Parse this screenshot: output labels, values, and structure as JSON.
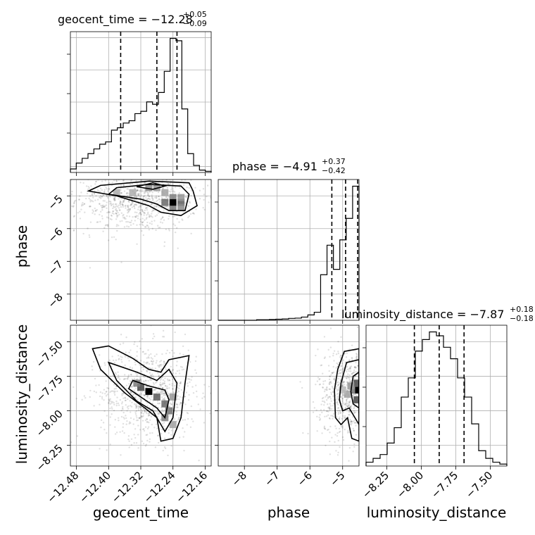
{
  "chart_data": {
    "type": "corner",
    "parameters": [
      {
        "name": "geocent_time",
        "label": "geocent_time",
        "title": "geocent_time = −12.28",
        "title_sup": "+0.05",
        "title_sub": "−0.09",
        "range": [
          -12.495,
          -12.145
        ],
        "ticks": [
          -12.48,
          -12.4,
          -12.32,
          -12.24,
          -12.16
        ],
        "tick_labels": [
          "−12.48",
          "−12.40",
          "−12.32",
          "−12.24",
          "−12.16"
        ],
        "quantiles": [
          -12.37,
          -12.28,
          -12.23
        ],
        "hist_edges": [
          -12.495,
          -12.145
        ],
        "hist_counts": [
          1.5,
          4,
          6,
          8,
          10,
          12,
          13,
          18,
          19,
          21,
          22,
          25,
          26,
          30,
          29,
          34,
          43,
          57,
          56,
          27,
          8,
          3,
          1,
          0.5
        ]
      },
      {
        "name": "phase",
        "label": "phase",
        "title": "phase = −4.91",
        "title_sup": "+0.37",
        "title_sub": "−0.42",
        "range": [
          -8.8,
          -4.5
        ],
        "ticks": [
          -8,
          -7,
          -6,
          -5
        ],
        "tick_labels": [
          "−8",
          "−7",
          "−6",
          "−5"
        ],
        "quantiles": [
          -5.33,
          -4.91,
          -4.54
        ],
        "hist_edges": [
          -8.8,
          -4.5
        ],
        "hist_counts": [
          0,
          0,
          0,
          0,
          0,
          0,
          0.2,
          0.2,
          0.3,
          0.4,
          0.5,
          0.7,
          0.8,
          1.2,
          2,
          3,
          17,
          28,
          19,
          30,
          38,
          50
        ]
      },
      {
        "name": "luminosity_distance",
        "label": "luminosity_distance",
        "title": "luminosity_distance = −7.87",
        "title_sup": "+0.18",
        "title_sub": "−0.18",
        "range": [
          -8.4,
          -7.38
        ],
        "ticks": [
          -8.25,
          -8.0,
          -7.75,
          -7.5
        ],
        "tick_labels": [
          "−8.25",
          "−8.00",
          "−7.75",
          "−7.50"
        ],
        "quantiles": [
          -8.05,
          -7.87,
          -7.69
        ],
        "hist_edges": [
          -8.4,
          -7.38
        ],
        "hist_counts": [
          1,
          2,
          3,
          6,
          10,
          18,
          23,
          30,
          33,
          35,
          34,
          31,
          28,
          23,
          18,
          11,
          4,
          2,
          1,
          0.5
        ]
      }
    ],
    "pairs": [
      {
        "x": 0,
        "y": 1,
        "peak": [
          -12.24,
          -5.2
        ],
        "contours": [
          [
            [
              -12.42,
              -4.68
            ],
            [
              -12.3,
              -4.55
            ],
            [
              -12.2,
              -4.6
            ],
            [
              -12.19,
              -4.85
            ],
            [
              -12.18,
              -5.3
            ],
            [
              -12.22,
              -5.6
            ],
            [
              -12.27,
              -5.5
            ],
            [
              -12.3,
              -5.3
            ],
            [
              -12.38,
              -5.0
            ],
            [
              -12.45,
              -4.85
            ]
          ],
          [
            [
              -12.38,
              -4.75
            ],
            [
              -12.3,
              -4.65
            ],
            [
              -12.22,
              -4.7
            ],
            [
              -12.2,
              -4.95
            ],
            [
              -12.21,
              -5.45
            ],
            [
              -12.25,
              -5.45
            ],
            [
              -12.28,
              -5.25
            ],
            [
              -12.32,
              -5.1
            ],
            [
              -12.4,
              -4.95
            ]
          ],
          [
            [
              -12.33,
              -4.72
            ],
            [
              -12.29,
              -4.6
            ],
            [
              -12.26,
              -4.7
            ],
            [
              -12.29,
              -4.8
            ]
          ]
        ],
        "cells": [
          [
            -12.24,
            -5.2,
            1.0
          ],
          [
            -12.22,
            -5.2,
            0.6
          ],
          [
            -12.26,
            -5.2,
            0.55
          ],
          [
            -12.24,
            -5.05,
            0.45
          ],
          [
            -12.24,
            -5.35,
            0.5
          ],
          [
            -12.22,
            -5.05,
            0.35
          ],
          [
            -12.22,
            -5.35,
            0.4
          ],
          [
            -12.3,
            -4.75,
            0.4
          ],
          [
            -12.28,
            -4.75,
            0.35
          ],
          [
            -12.34,
            -4.9,
            0.25
          ],
          [
            -12.38,
            -4.9,
            0.25
          ],
          [
            -12.26,
            -4.9,
            0.3
          ]
        ],
        "spread_x": 0.075,
        "spread_y": 0.5,
        "center": [
          -12.33,
          -5.1
        ],
        "scatter_n": 900
      },
      {
        "x": 0,
        "y": 2,
        "peak": [
          -12.3,
          -7.86
        ],
        "contours": [
          [
            [
              -12.44,
              -7.55
            ],
            [
              -12.4,
              -7.53
            ],
            [
              -12.34,
              -7.62
            ],
            [
              -12.3,
              -7.7
            ],
            [
              -12.27,
              -7.72
            ],
            [
              -12.25,
              -7.63
            ],
            [
              -12.2,
              -7.6
            ],
            [
              -12.21,
              -7.8
            ],
            [
              -12.22,
              -8.05
            ],
            [
              -12.24,
              -8.2
            ],
            [
              -12.27,
              -8.22
            ],
            [
              -12.28,
              -8.05
            ],
            [
              -12.31,
              -7.98
            ],
            [
              -12.36,
              -7.87
            ],
            [
              -12.42,
              -7.7
            ]
          ],
          [
            [
              -12.4,
              -7.65
            ],
            [
              -12.33,
              -7.72
            ],
            [
              -12.28,
              -7.78
            ],
            [
              -12.25,
              -7.7
            ],
            [
              -12.23,
              -7.8
            ],
            [
              -12.24,
              -8.05
            ],
            [
              -12.26,
              -8.15
            ],
            [
              -12.29,
              -8.0
            ],
            [
              -12.33,
              -7.93
            ],
            [
              -12.38,
              -7.78
            ]
          ],
          [
            [
              -12.34,
              -7.78
            ],
            [
              -12.3,
              -7.82
            ],
            [
              -12.26,
              -7.85
            ],
            [
              -12.25,
              -7.92
            ],
            [
              -12.26,
              -8.05
            ],
            [
              -12.28,
              -7.98
            ],
            [
              -12.31,
              -7.92
            ],
            [
              -12.35,
              -7.84
            ]
          ]
        ],
        "cells": [
          [
            -12.3,
            -7.86,
            1.0
          ],
          [
            -12.32,
            -7.83,
            0.7
          ],
          [
            -12.28,
            -7.9,
            0.6
          ],
          [
            -12.26,
            -7.95,
            0.55
          ],
          [
            -12.25,
            -8.0,
            0.5
          ],
          [
            -12.26,
            -8.05,
            0.45
          ],
          [
            -12.33,
            -7.8,
            0.45
          ],
          [
            -12.24,
            -7.9,
            0.35
          ],
          [
            -12.24,
            -8.1,
            0.3
          ]
        ],
        "spread_x": 0.06,
        "spread_y": 0.17,
        "center": [
          -12.3,
          -7.87
        ],
        "scatter_n": 900
      },
      {
        "x": 1,
        "y": 2,
        "peak": [
          -4.52,
          -7.85
        ],
        "contours": [
          [
            [
              -4.5,
              -7.55
            ],
            [
              -4.95,
              -7.57
            ],
            [
              -5.15,
              -7.7
            ],
            [
              -5.25,
              -7.85
            ],
            [
              -5.22,
              -8.05
            ],
            [
              -5.05,
              -8.1
            ],
            [
              -4.85,
              -8.05
            ],
            [
              -4.72,
              -8.2
            ],
            [
              -4.5,
              -8.22
            ]
          ],
          [
            [
              -4.5,
              -7.63
            ],
            [
              -4.88,
              -7.65
            ],
            [
              -5.05,
              -7.8
            ],
            [
              -5.1,
              -7.92
            ],
            [
              -5.0,
              -8.0
            ],
            [
              -4.8,
              -7.98
            ],
            [
              -4.5,
              -8.1
            ]
          ],
          [
            [
              -4.5,
              -7.72
            ],
            [
              -4.68,
              -7.75
            ],
            [
              -4.75,
              -7.86
            ],
            [
              -4.68,
              -7.95
            ],
            [
              -4.5,
              -7.98
            ]
          ]
        ],
        "cells": [
          [
            -4.52,
            -7.85,
            1.0
          ],
          [
            -4.56,
            -7.8,
            0.7
          ],
          [
            -4.56,
            -7.92,
            0.7
          ],
          [
            -4.65,
            -7.85,
            0.5
          ],
          [
            -4.75,
            -7.82,
            0.35
          ],
          [
            -4.85,
            -7.88,
            0.3
          ],
          [
            -5.0,
            -7.85,
            0.2
          ]
        ],
        "spread_x": 0.45,
        "spread_y": 0.17,
        "center": [
          -4.85,
          -7.87
        ],
        "scatter_n": 700
      }
    ]
  }
}
